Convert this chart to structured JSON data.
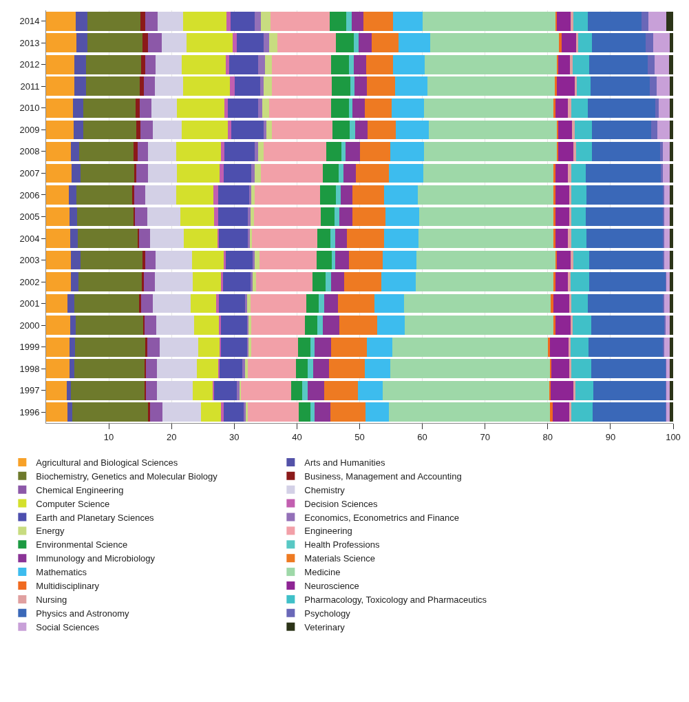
{
  "chart_data": {
    "type": "bar",
    "orientation": "horizontal",
    "stacked": true,
    "categories": [
      "2014",
      "2013",
      "2012",
      "2011",
      "2010",
      "2009",
      "2008",
      "2007",
      "2006",
      "2005",
      "2004",
      "2003",
      "2002",
      "2001",
      "2000",
      "1999",
      "1998",
      "1997",
      "1996"
    ],
    "xlim": [
      0,
      100
    ],
    "xticks": [
      10,
      20,
      30,
      40,
      50,
      60,
      70,
      80,
      90,
      100
    ],
    "grid": "x",
    "legend": "bottom",
    "series": [
      {
        "name": "Agricultural and Biological Sciences",
        "color": "#f7a128",
        "values": [
          4.7,
          4.8,
          4.5,
          4.5,
          4.3,
          4.4,
          3.9,
          4.1,
          3.6,
          3.7,
          3.8,
          4.0,
          4.0,
          3.4,
          3.8,
          3.7,
          3.7,
          3.3,
          3.4
        ]
      },
      {
        "name": "Arts and Humanities",
        "color": "#5352a8",
        "values": [
          1.9,
          1.8,
          1.9,
          1.9,
          1.6,
          1.5,
          1.4,
          1.4,
          1.2,
          1.2,
          1.2,
          1.5,
          1.2,
          1.1,
          0.9,
          0.9,
          0.8,
          0.7,
          0.8
        ]
      },
      {
        "name": "Biochemistry, Genetics and Molecular Biology",
        "color": "#6e7a2c",
        "values": [
          8.4,
          8.8,
          8.7,
          8.5,
          8.4,
          8.5,
          8.6,
          8.5,
          8.9,
          9.0,
          9.6,
          9.9,
          10.1,
          10.3,
          10.8,
          11.3,
          11.2,
          11.7,
          12.1
        ]
      },
      {
        "name": "Business, Management and Accounting",
        "color": "#8b1a1a",
        "values": [
          0.8,
          0.8,
          0.7,
          0.7,
          0.6,
          0.6,
          0.7,
          0.4,
          0.4,
          0.3,
          0.2,
          0.4,
          0.3,
          0.4,
          0.2,
          0.2,
          0.2,
          0.2,
          0.3
        ]
      },
      {
        "name": "Chemical Engineering",
        "color": "#8c58a8",
        "values": [
          2.0,
          2.2,
          1.7,
          1.7,
          1.9,
          2.0,
          1.6,
          1.8,
          1.7,
          1.9,
          1.8,
          1.7,
          1.7,
          1.8,
          1.9,
          2.0,
          1.8,
          1.8,
          2.0
        ]
      },
      {
        "name": "Chemistry",
        "color": "#d3d0e6",
        "values": [
          4.0,
          4.0,
          4.1,
          4.5,
          4.1,
          4.6,
          4.6,
          4.7,
          4.9,
          5.3,
          5.4,
          5.8,
          6.1,
          6.0,
          6.0,
          6.2,
          6.3,
          5.7,
          6.1
        ]
      },
      {
        "name": "Computer Science",
        "color": "#d4e02c",
        "values": [
          7.0,
          7.4,
          7.0,
          7.5,
          7.5,
          7.4,
          7.1,
          6.8,
          6.0,
          5.4,
          5.4,
          5.1,
          4.5,
          4.1,
          4.0,
          3.4,
          3.4,
          3.2,
          3.2
        ]
      },
      {
        "name": "Decision Sciences",
        "color": "#c25fb0",
        "values": [
          0.6,
          0.6,
          0.6,
          0.8,
          0.6,
          0.5,
          0.5,
          0.6,
          0.7,
          0.6,
          0.2,
          0.2,
          0.3,
          0.5,
          0.3,
          0.2,
          0.3,
          0.2,
          0.4
        ]
      },
      {
        "name": "Earth and Planetary Sciences",
        "color": "#4d4fae",
        "values": [
          3.9,
          4.3,
          4.6,
          4.0,
          4.8,
          5.2,
          4.9,
          4.4,
          5.0,
          4.8,
          4.6,
          4.3,
          4.4,
          4.1,
          4.1,
          4.1,
          3.6,
          3.6,
          3.2
        ]
      },
      {
        "name": "Economics, Econometrics and Finance",
        "color": "#9370b8",
        "values": [
          0.9,
          0.9,
          1.1,
          0.6,
          0.7,
          0.4,
          0.5,
          0.6,
          0.3,
          0.4,
          0.3,
          0.4,
          0.3,
          0.3,
          0.3,
          0.3,
          0.4,
          0.4,
          0.3
        ]
      },
      {
        "name": "Energy",
        "color": "#c8dc80",
        "values": [
          1.6,
          1.3,
          1.1,
          1.3,
          1.1,
          0.9,
          0.9,
          0.9,
          0.6,
          0.5,
          0.3,
          0.7,
          0.6,
          0.6,
          0.4,
          0.4,
          0.5,
          0.3,
          0.4
        ]
      },
      {
        "name": "Engineering",
        "color": "#f2a0a8",
        "values": [
          9.4,
          9.3,
          9.4,
          9.6,
          9.8,
          9.7,
          10.0,
          9.9,
          10.4,
          10.7,
          10.4,
          9.1,
          9.0,
          8.9,
          8.6,
          7.5,
          7.7,
          8.0,
          8.1
        ]
      },
      {
        "name": "Environmental Science",
        "color": "#1c9a42",
        "values": [
          2.7,
          2.9,
          2.9,
          2.9,
          2.9,
          2.7,
          2.4,
          2.6,
          2.5,
          2.2,
          2.1,
          2.5,
          2.1,
          2.0,
          2.0,
          1.9,
          1.8,
          1.7,
          1.8
        ]
      },
      {
        "name": "Health Professions",
        "color": "#58c8c4",
        "values": [
          0.8,
          0.7,
          0.8,
          0.7,
          0.6,
          0.9,
          0.7,
          0.7,
          0.8,
          0.8,
          0.8,
          0.5,
          0.8,
          0.8,
          0.8,
          0.7,
          0.9,
          0.9,
          0.7
        ]
      },
      {
        "name": "Immunology and Microbiology",
        "color": "#8a3496",
        "values": [
          1.9,
          2.1,
          1.9,
          1.9,
          1.9,
          2.0,
          2.2,
          2.0,
          1.9,
          2.0,
          1.9,
          2.2,
          2.1,
          2.2,
          2.7,
          2.6,
          2.5,
          2.7,
          2.5
        ]
      },
      {
        "name": "Materials Science",
        "color": "#ee7a22",
        "values": [
          4.7,
          4.3,
          4.3,
          4.6,
          4.3,
          4.5,
          4.9,
          5.3,
          5.0,
          5.3,
          5.9,
          5.4,
          6.0,
          5.9,
          6.0,
          5.7,
          5.7,
          5.3,
          5.6
        ]
      },
      {
        "name": "Mathematics",
        "color": "#3dbcee",
        "values": [
          4.7,
          5.0,
          5.1,
          5.1,
          5.2,
          5.2,
          5.4,
          5.4,
          5.4,
          5.4,
          5.5,
          5.4,
          5.4,
          4.7,
          4.4,
          4.1,
          4.1,
          4.0,
          3.8
        ]
      },
      {
        "name": "Medicine",
        "color": "#9ed8a8",
        "values": [
          21.2,
          20.6,
          21.0,
          20.3,
          20.6,
          20.4,
          21.1,
          20.8,
          21.6,
          21.4,
          21.5,
          22.2,
          22.0,
          23.4,
          23.7,
          24.8,
          25.5,
          26.5,
          25.7
        ]
      },
      {
        "name": "Multidisciplinary",
        "color": "#f06a20",
        "values": [
          0.3,
          0.4,
          0.3,
          0.3,
          0.3,
          0.3,
          0.3,
          0.3,
          0.3,
          0.3,
          0.3,
          0.2,
          0.3,
          0.4,
          0.3,
          0.3,
          0.2,
          0.3,
          0.4
        ]
      },
      {
        "name": "Neuroscience",
        "color": "#8e2594",
        "values": [
          2.1,
          2.3,
          1.8,
          2.9,
          2.0,
          2.2,
          2.4,
          2.0,
          2.2,
          2.2,
          2.0,
          2.1,
          2.0,
          2.5,
          2.4,
          3.1,
          2.8,
          3.6,
          2.6
        ]
      },
      {
        "name": "Nursing",
        "color": "#e0a0a0",
        "values": [
          0.5,
          0.4,
          0.5,
          0.3,
          0.6,
          0.4,
          0.4,
          0.6,
          0.4,
          0.4,
          0.6,
          0.5,
          0.4,
          0.4,
          0.4,
          0.2,
          0.4,
          0.3,
          0.4
        ]
      },
      {
        "name": "Pharmacology, Toxicology and Pharmaceutics",
        "color": "#40c0c8",
        "values": [
          2.3,
          2.2,
          2.6,
          2.2,
          2.6,
          2.7,
          2.5,
          2.3,
          2.4,
          2.3,
          2.4,
          2.5,
          3.0,
          2.6,
          2.9,
          2.9,
          3.1,
          2.9,
          3.4
        ]
      },
      {
        "name": "Physics and Astronomy",
        "color": "#3a68b8",
        "values": [
          8.6,
          8.5,
          9.3,
          9.5,
          10.8,
          9.5,
          10.9,
          12.0,
          12.1,
          12.2,
          12.1,
          11.7,
          12.2,
          12.0,
          11.7,
          11.9,
          11.9,
          11.5,
          11.6
        ]
      },
      {
        "name": "Psychology",
        "color": "#6a68b8",
        "values": [
          1.1,
          1.2,
          1.1,
          1.1,
          0.5,
          1.0,
          0.4,
          0.2,
          0.3,
          0.3,
          0.3,
          0.3,
          0.1,
          0.2,
          0.2,
          0.2,
          0.1,
          0.1,
          0.1
        ]
      },
      {
        "name": "Social Sciences",
        "color": "#c8a0d8",
        "values": [
          2.8,
          2.7,
          2.3,
          2.1,
          1.8,
          2.0,
          1.2,
          1.2,
          0.9,
          0.9,
          0.9,
          0.9,
          0.6,
          0.9,
          0.7,
          0.9,
          0.6,
          0.6,
          0.6
        ]
      },
      {
        "name": "Veterinary",
        "color": "#2c3418",
        "values": [
          1.1,
          0.5,
          0.7,
          0.5,
          0.5,
          0.5,
          0.5,
          0.5,
          0.5,
          0.5,
          0.5,
          0.5,
          0.5,
          0.5,
          0.5,
          0.5,
          0.5,
          0.5,
          0.5
        ]
      }
    ]
  }
}
